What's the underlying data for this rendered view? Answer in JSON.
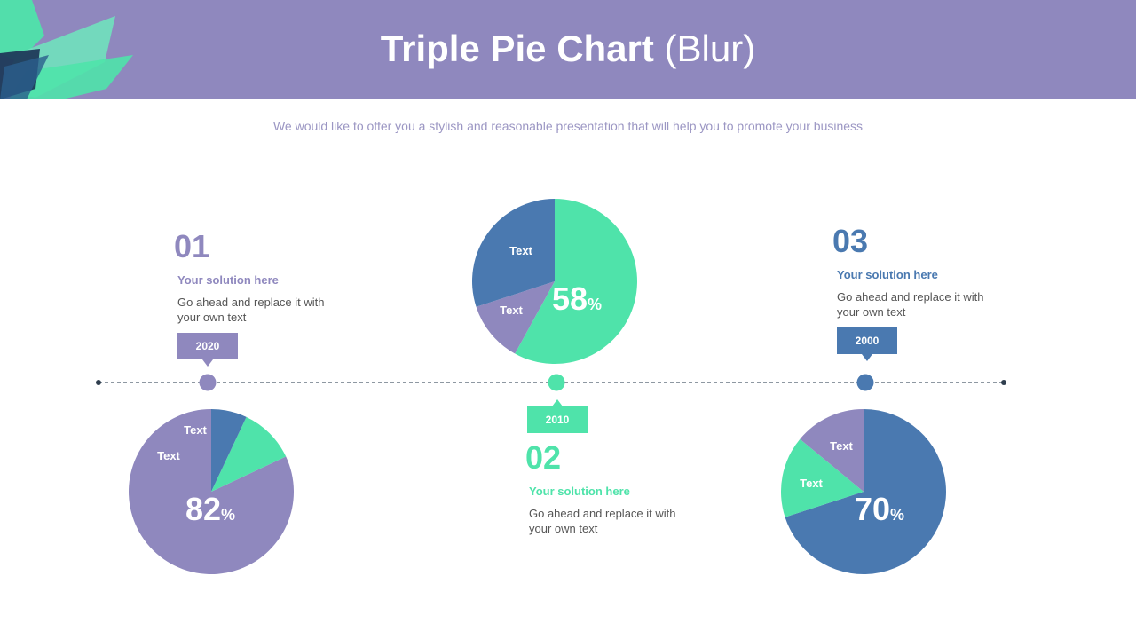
{
  "header": {
    "title_bold": "Triple Pie Chart",
    "title_light": "(Blur)"
  },
  "subtitle": "We would like to offer you a stylish and reasonable presentation that will help you to promote your business",
  "colors": {
    "purple": "#8f88be",
    "green": "#4fe3aa",
    "blue": "#4a79b0",
    "header": "#8f88be"
  },
  "steps": [
    {
      "number": "01",
      "title": "Your solution here",
      "desc": "Go ahead and replace it with your own text",
      "year": "2020"
    },
    {
      "number": "02",
      "title": "Your solution here",
      "desc": "Go ahead and replace it with your own text",
      "year": "2010"
    },
    {
      "number": "03",
      "title": "Your solution here",
      "desc": "Go ahead and replace it with your own text",
      "year": "2000"
    }
  ],
  "chart_data": [
    {
      "type": "pie",
      "big_value": "82",
      "unit": "%",
      "slices": [
        {
          "label": "",
          "value": 82,
          "color": "#8f88be"
        },
        {
          "label": "Text",
          "value": 11,
          "color": "#4fe3aa"
        },
        {
          "label": "Text",
          "value": 7,
          "color": "#4a79b0"
        }
      ]
    },
    {
      "type": "pie",
      "big_value": "58",
      "unit": "%",
      "slices": [
        {
          "label": "",
          "value": 58,
          "color": "#4fe3aa"
        },
        {
          "label": "Text",
          "value": 12,
          "color": "#8f88be"
        },
        {
          "label": "Text",
          "value": 30,
          "color": "#4a79b0"
        }
      ]
    },
    {
      "type": "pie",
      "big_value": "70",
      "unit": "%",
      "slices": [
        {
          "label": "",
          "value": 70,
          "color": "#4a79b0"
        },
        {
          "label": "Text",
          "value": 16,
          "color": "#4fe3aa"
        },
        {
          "label": "Text",
          "value": 14,
          "color": "#8f88be"
        }
      ]
    }
  ]
}
